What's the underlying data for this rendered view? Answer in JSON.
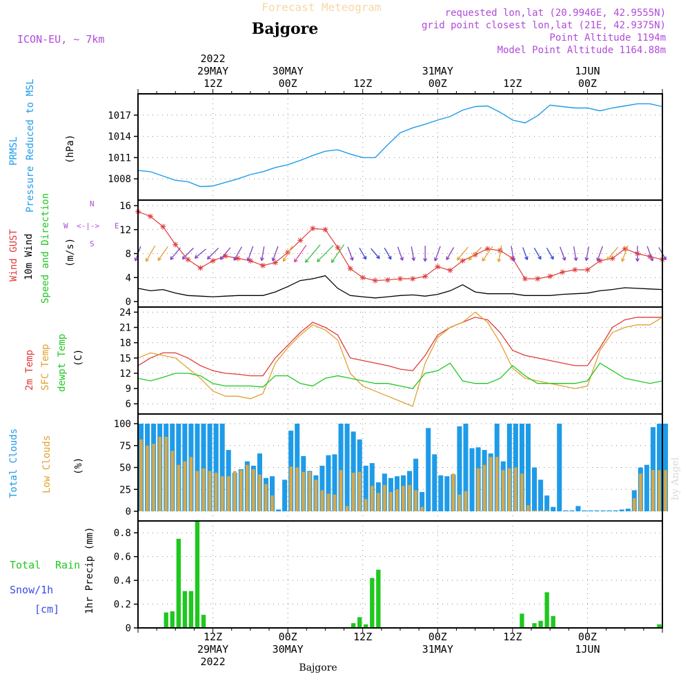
{
  "header": {
    "title": "Forecast Meteogram",
    "station": "Bajgore",
    "model": "ICON-EU, ~ 7km",
    "requested": "requested lon,lat (20.9946E, 42.9555N)",
    "grid_point": "grid point closest lon,lat (21E, 42.9375N)",
    "point_alt": "Point Altitude 1194m",
    "model_alt": "Model Point Altitude 1164.88m",
    "watermark": "by Angel",
    "footer_station": "Bajgore"
  },
  "time_axis": {
    "top": [
      {
        "h": 12,
        "lines": [
          "2022",
          "29MAY",
          "12Z"
        ]
      },
      {
        "h": 24,
        "lines": [
          "30MAY",
          "00Z"
        ]
      },
      {
        "h": 36,
        "lines": [
          "12Z"
        ]
      },
      {
        "h": 48,
        "lines": [
          "31MAY",
          "00Z"
        ]
      },
      {
        "h": 60,
        "lines": [
          "12Z"
        ]
      },
      {
        "h": 72,
        "lines": [
          "1JUN",
          "00Z"
        ]
      }
    ],
    "bottom": [
      {
        "h": 12,
        "lines": [
          "12Z",
          "29MAY",
          "2022"
        ]
      },
      {
        "h": 24,
        "lines": [
          "00Z",
          "30MAY"
        ]
      },
      {
        "h": 36,
        "lines": [
          "12Z"
        ]
      },
      {
        "h": 48,
        "lines": [
          "00Z",
          "31MAY"
        ]
      },
      {
        "h": 60,
        "lines": [
          "12Z"
        ]
      },
      {
        "h": 72,
        "lines": [
          "00Z",
          "1JUN"
        ]
      }
    ]
  },
  "panel_labels": {
    "pressure": {
      "line1": "PRMSL",
      "line2": "Pressure Reduced to MSL",
      "unit": "(hPa)"
    },
    "wind": {
      "gust": "Wind GUST",
      "wind10": "10m Wind",
      "speed_dir": "Speed and Direction",
      "unit": "(m/s)",
      "compass_w": "W",
      "compass_e": "E",
      "compass_n": "N",
      "compass_s": "S",
      "compass_arrows": "<-|->"
    },
    "temp": {
      "t2m": "2m Temp",
      "sfc": "SFC Temp",
      "dewpt": "dewpt Temp",
      "unit": "(C)"
    },
    "clouds": {
      "total": "Total Clouds",
      "low": "Low Clouds",
      "unit": "(%)"
    },
    "precip": {
      "total": "Total",
      "rain": "Rain",
      "snow": "Snow/1h",
      "cm": "[cm]",
      "axis": "1hr Precip (mm)"
    }
  },
  "colors": {
    "pressure": "#1e9be8",
    "gust": "#e03a3a",
    "wind": "#000000",
    "t2m": "#e03a3a",
    "sfc": "#e0a030",
    "dewpt": "#1ec81e",
    "total_clouds": "#1e9be8",
    "low_clouds": "#d8a848",
    "precip": "#1ec81e"
  },
  "chart_data": [
    {
      "type": "line",
      "name": "pressure",
      "ylabel": "hPa",
      "yticks": [
        1008,
        1011,
        1014,
        1017
      ],
      "ylim": [
        1005,
        1020
      ],
      "x": [
        0,
        2,
        4,
        6,
        8,
        10,
        12,
        14,
        16,
        18,
        20,
        22,
        24,
        26,
        28,
        30,
        32,
        34,
        36,
        38,
        40,
        42,
        44,
        46,
        48,
        50,
        52,
        54,
        56,
        58,
        60,
        62,
        64,
        66,
        68,
        70,
        72,
        74,
        76,
        78,
        80,
        82,
        84
      ],
      "values": [
        1009.2,
        1009.0,
        1008.4,
        1007.8,
        1007.6,
        1006.9,
        1007.0,
        1007.5,
        1008.0,
        1008.6,
        1009.0,
        1009.6,
        1010.0,
        1010.6,
        1011.3,
        1011.9,
        1012.1,
        1011.5,
        1011.0,
        1011.0,
        1012.8,
        1014.5,
        1015.2,
        1015.7,
        1016.3,
        1016.8,
        1017.7,
        1018.2,
        1018.3,
        1017.4,
        1016.3,
        1015.9,
        1016.9,
        1018.4,
        1018.2,
        1018.0,
        1018.0,
        1017.6,
        1018.0,
        1018.3,
        1018.6,
        1018.6,
        1018.2
      ]
    },
    {
      "type": "line",
      "name": "wind",
      "ylabel": "m/s",
      "yticks": [
        0,
        4,
        8,
        12,
        16
      ],
      "ylim": [
        0,
        16
      ],
      "x": [
        0,
        2,
        4,
        6,
        8,
        10,
        12,
        14,
        16,
        18,
        20,
        22,
        24,
        26,
        28,
        30,
        32,
        34,
        36,
        38,
        40,
        42,
        44,
        46,
        48,
        50,
        52,
        54,
        56,
        58,
        60,
        62,
        64,
        66,
        68,
        70,
        72,
        74,
        76,
        78,
        80,
        82,
        84
      ],
      "series": [
        {
          "name": "Wind GUST",
          "values": [
            15.0,
            14.2,
            12.5,
            9.5,
            7.0,
            5.6,
            6.8,
            7.6,
            7.2,
            6.8,
            6.0,
            6.5,
            8.2,
            10.2,
            12.2,
            12.0,
            9.0,
            5.5,
            4.0,
            3.5,
            3.6,
            3.8,
            3.8,
            4.2,
            5.8,
            5.2,
            6.8,
            7.8,
            8.8,
            8.5,
            7.2,
            3.8,
            3.8,
            4.2,
            4.9,
            5.3,
            5.3,
            6.8,
            7.2,
            8.8,
            8.0,
            7.5,
            7.0
          ]
        },
        {
          "name": "10m Wind",
          "values": [
            2.2,
            1.8,
            2.0,
            1.4,
            1.0,
            0.9,
            0.8,
            0.9,
            1.0,
            1.0,
            1.0,
            1.6,
            2.5,
            3.5,
            3.8,
            4.3,
            2.2,
            1.0,
            0.8,
            0.6,
            0.8,
            1.0,
            1.1,
            0.9,
            1.2,
            1.8,
            2.8,
            1.6,
            1.3,
            1.3,
            1.3,
            1.0,
            1.0,
            1.0,
            1.2,
            1.3,
            1.4,
            1.8,
            2.0,
            2.3,
            2.2,
            2.1,
            2.0
          ]
        }
      ],
      "arrow_speeds": [
        7,
        9,
        8,
        7,
        7,
        6,
        7,
        7,
        7,
        7,
        6,
        7,
        9,
        11,
        13,
        13,
        12,
        6,
        5,
        5,
        5,
        6,
        6,
        7,
        7,
        6,
        8,
        9,
        9,
        8,
        7,
        5,
        5,
        5,
        6,
        6,
        6,
        7,
        8,
        8,
        7,
        7,
        6
      ]
    },
    {
      "type": "line",
      "name": "temperature",
      "ylabel": "C",
      "yticks": [
        6,
        9,
        12,
        15,
        18,
        21,
        24
      ],
      "ylim": [
        4,
        25
      ],
      "x": [
        0,
        2,
        4,
        6,
        8,
        10,
        12,
        14,
        16,
        18,
        20,
        22,
        24,
        26,
        28,
        30,
        32,
        34,
        36,
        38,
        40,
        42,
        44,
        46,
        48,
        50,
        52,
        54,
        56,
        58,
        60,
        62,
        64,
        66,
        68,
        70,
        72,
        74,
        76,
        78,
        80,
        82,
        84
      ],
      "series": [
        {
          "name": "2m Temp",
          "values": [
            13.5,
            15.0,
            16.0,
            16.0,
            15.0,
            13.5,
            12.5,
            12.0,
            11.8,
            11.5,
            11.5,
            15.0,
            17.5,
            20.0,
            22.0,
            21.0,
            19.5,
            15.0,
            14.5,
            14.0,
            13.5,
            12.8,
            12.5,
            15.5,
            19.5,
            21.0,
            22.0,
            23.0,
            22.5,
            20.0,
            16.5,
            15.5,
            15.0,
            14.5,
            14.0,
            13.5,
            13.5,
            17.0,
            21.0,
            22.5,
            23.0,
            23.0,
            23.0
          ]
        },
        {
          "name": "SFC Temp",
          "values": [
            15.0,
            16.0,
            15.5,
            15.0,
            13.0,
            11.0,
            8.5,
            7.5,
            7.5,
            7.0,
            8.0,
            14.0,
            17.0,
            19.5,
            21.5,
            20.5,
            18.5,
            12.0,
            9.5,
            8.5,
            7.5,
            6.5,
            5.5,
            14.0,
            19.0,
            21.0,
            22.0,
            24.0,
            22.0,
            18.0,
            13.0,
            11.0,
            10.5,
            10.0,
            9.5,
            9.0,
            9.5,
            16.5,
            20.0,
            21.0,
            21.5,
            21.5,
            23.0
          ]
        },
        {
          "name": "dewpt Temp",
          "values": [
            11.0,
            10.5,
            11.2,
            12.0,
            12.0,
            11.5,
            10.0,
            9.5,
            9.5,
            9.5,
            9.3,
            11.5,
            11.5,
            10.0,
            9.5,
            11.0,
            11.5,
            11.0,
            10.5,
            10.0,
            10.0,
            9.5,
            9.0,
            12.0,
            12.5,
            14.0,
            10.5,
            10.0,
            10.0,
            11.0,
            13.5,
            11.5,
            10.0,
            10.0,
            10.0,
            10.0,
            10.5,
            14.0,
            12.5,
            11.0,
            10.5,
            10.0,
            10.5
          ]
        }
      ]
    },
    {
      "type": "bar",
      "name": "clouds",
      "ylabel": "%",
      "yticks": [
        0,
        25,
        50,
        75,
        100
      ],
      "ylim": [
        0,
        100
      ],
      "x": [
        0,
        1,
        2,
        3,
        4,
        5,
        6,
        7,
        8,
        9,
        10,
        11,
        12,
        13,
        14,
        15,
        16,
        17,
        18,
        19,
        20,
        21,
        22,
        23,
        24,
        25,
        26,
        27,
        28,
        29,
        30,
        31,
        32,
        33,
        34,
        35,
        36,
        37,
        38,
        39,
        40,
        41,
        42,
        43,
        44,
        45,
        46,
        47,
        48,
        49,
        50,
        51,
        52,
        53,
        54,
        55,
        56,
        57,
        58,
        59,
        60,
        61,
        62,
        63,
        64,
        65,
        66,
        67,
        68,
        69,
        70,
        71,
        72,
        73,
        74,
        75,
        76,
        77,
        78,
        79,
        80,
        81,
        82,
        83,
        84
      ],
      "series": [
        {
          "name": "Total Clouds",
          "values": [
            100,
            100,
            100,
            100,
            100,
            100,
            100,
            100,
            100,
            100,
            100,
            100,
            100,
            100,
            70,
            44,
            48,
            57,
            52,
            66,
            38,
            40,
            2,
            36,
            92,
            100,
            63,
            46,
            41,
            52,
            64,
            65,
            100,
            100,
            91,
            82,
            52,
            55,
            33,
            43,
            38,
            40,
            41,
            46,
            60,
            22,
            95,
            65,
            41,
            40,
            42,
            97,
            100,
            72,
            73,
            70,
            66,
            100,
            57,
            100,
            100,
            100,
            100,
            50,
            36,
            18,
            5,
            100,
            1,
            1,
            6,
            1,
            1,
            1,
            1,
            1,
            1,
            2,
            3,
            24,
            50,
            53,
            96,
            100,
            100
          ]
        },
        {
          "name": "Low Clouds",
          "values": [
            82,
            75,
            77,
            85,
            85,
            69,
            53,
            57,
            62,
            46,
            49,
            46,
            44,
            40,
            40,
            46,
            47,
            53,
            48,
            42,
            31,
            18,
            0,
            0,
            51,
            50,
            45,
            45,
            36,
            24,
            20,
            19,
            47,
            6,
            44,
            45,
            14,
            29,
            21,
            30,
            22,
            25,
            29,
            30,
            24,
            5,
            0,
            0,
            0,
            0,
            43,
            19,
            23,
            0,
            49,
            53,
            62,
            62,
            47,
            49,
            50,
            43,
            7,
            1,
            1,
            1,
            0,
            0,
            0,
            0,
            0,
            0,
            0,
            0,
            0,
            0,
            0,
            0,
            0,
            15,
            43,
            0,
            47,
            47,
            47
          ]
        }
      ]
    },
    {
      "type": "bar",
      "name": "precipitation",
      "ylabel": "1hr Precip (mm)",
      "yticks": [
        0,
        0.2,
        0.4,
        0.6,
        0.8
      ],
      "ylim": [
        0,
        0.9
      ],
      "x": [
        0,
        1,
        2,
        3,
        4,
        5,
        6,
        7,
        8,
        9,
        10,
        11,
        12,
        13,
        14,
        15,
        16,
        17,
        18,
        19,
        20,
        21,
        22,
        23,
        24,
        25,
        26,
        27,
        28,
        29,
        30,
        31,
        32,
        33,
        34,
        35,
        36,
        37,
        38,
        39,
        40,
        41,
        42,
        43,
        44,
        45,
        46,
        47,
        48,
        49,
        50,
        51,
        52,
        53,
        54,
        55,
        56,
        57,
        58,
        59,
        60,
        61,
        62,
        63,
        64,
        65,
        66,
        67,
        68,
        69,
        70,
        71,
        72,
        73,
        74,
        75,
        76,
        77,
        78,
        79,
        80,
        81,
        82,
        83,
        84
      ],
      "values": [
        0,
        0,
        0,
        0,
        0.13,
        0.14,
        0.75,
        0.31,
        0.31,
        0.9,
        0.11,
        0,
        0,
        0,
        0,
        0,
        0,
        0,
        0,
        0,
        0,
        0,
        0,
        0,
        0,
        0,
        0,
        0,
        0,
        0,
        0,
        0,
        0,
        0,
        0.04,
        0.09,
        0.03,
        0.42,
        0.49,
        0,
        0,
        0,
        0,
        0,
        0,
        0,
        0,
        0,
        0,
        0,
        0,
        0,
        0,
        0,
        0,
        0,
        0,
        0,
        0,
        0,
        0,
        0.12,
        0,
        0.04,
        0.06,
        0.3,
        0.1,
        0,
        0,
        0,
        0,
        0,
        0,
        0,
        0,
        0,
        0,
        0,
        0,
        0,
        0,
        0,
        0,
        0.03,
        0
      ]
    }
  ]
}
